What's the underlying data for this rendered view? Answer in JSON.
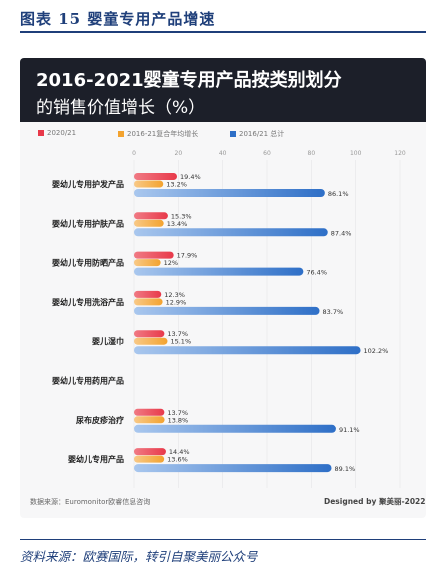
{
  "figure_caption": "图表 15  婴童专用产品增速",
  "bottom_source": "资料来源：欧赛国际，转引自聚美丽公众号",
  "footer_source": "数据来源：Euromonitor欧睿信息咨询",
  "footer_credit": "Designed by 聚美丽-2022",
  "chart_data": {
    "type": "bar",
    "orientation": "horizontal",
    "title": "2016-2021婴童专用产品按类别划分",
    "subtitle": "的销售价值增长（%）",
    "xlim": [
      0,
      120
    ],
    "xticks": [
      0,
      20,
      40,
      60,
      80,
      100,
      120
    ],
    "categories": [
      "婴幼儿专用护发产品",
      "婴幼儿专用护肤产品",
      "婴幼儿专用防晒产品",
      "婴幼儿专用洗浴产品",
      "婴儿湿巾",
      "婴幼儿专用药用产品",
      "尿布皮疹治疗",
      "婴幼儿专用产品"
    ],
    "series": [
      {
        "name": "2020/21",
        "color": "#e8394a",
        "values": [
          19.4,
          15.3,
          17.9,
          12.3,
          13.7,
          null,
          13.7,
          14.4
        ],
        "labels": [
          "19.4%",
          "15.3%",
          "17.9%",
          "12.3%",
          "13.7%",
          null,
          "13.7%",
          "14.4%"
        ]
      },
      {
        "name": "2016-21复合年均增长",
        "color": "#f3a32f",
        "values": [
          13.2,
          13.4,
          12,
          12.9,
          15.1,
          null,
          13.8,
          13.6
        ],
        "labels": [
          "13.2%",
          "13.4%",
          "12%",
          "12.9%",
          "15.1%",
          null,
          "13.8%",
          "13.6%"
        ]
      },
      {
        "name": "2016/21 总计",
        "color": "#2e6fc7",
        "values": [
          86.1,
          87.4,
          76.4,
          83.7,
          102.2,
          null,
          91.1,
          89.1
        ],
        "labels": [
          "86.1%",
          "87.4%",
          "76.4%",
          "83.7%",
          "102.2%",
          null,
          "91.1%",
          "89.1%"
        ]
      }
    ],
    "grid": true,
    "legend_position": "top-left"
  }
}
